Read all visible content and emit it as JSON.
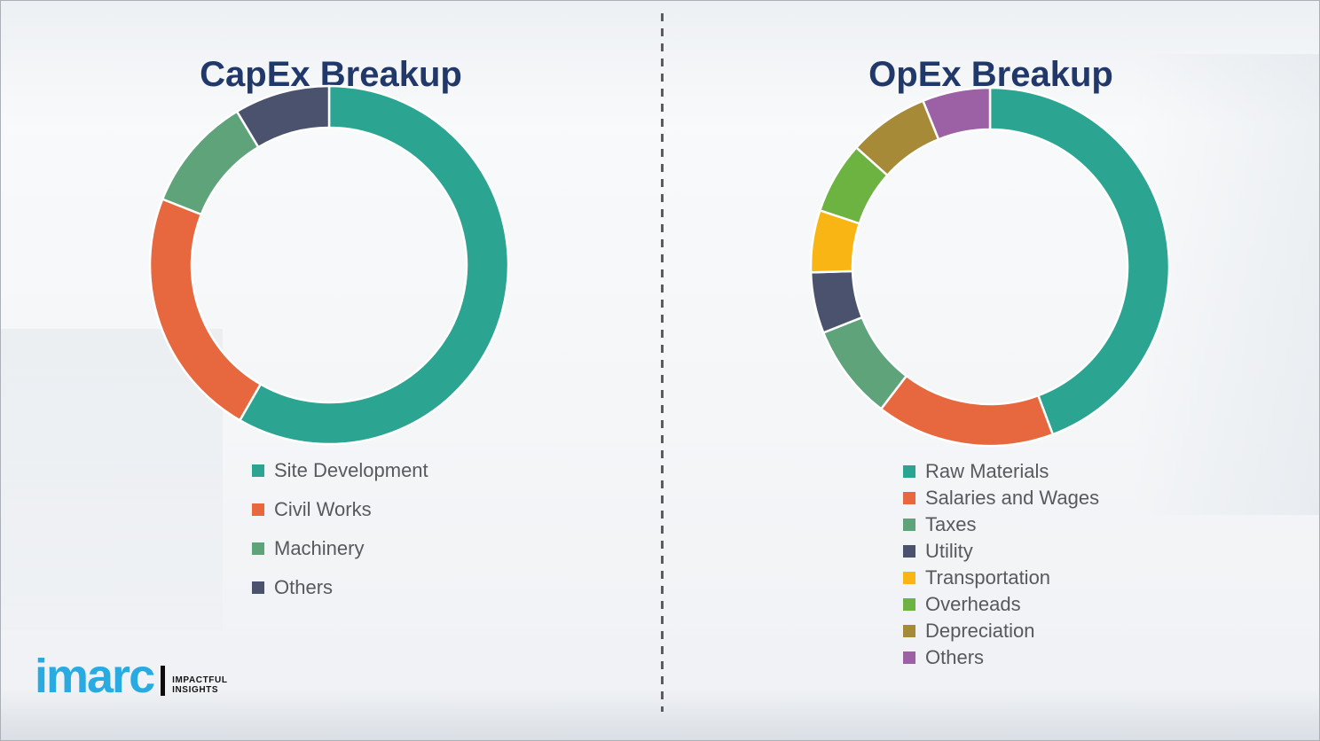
{
  "chart_data": [
    {
      "type": "pie",
      "subtype": "donut",
      "title": "CapEx Breakup",
      "categories": [
        "Site Development",
        "Civil Works",
        "Machinery",
        "Others"
      ],
      "values": [
        58.3,
        22.7,
        10.4,
        8.6
      ],
      "colors": [
        "#2BA592",
        "#E7673F",
        "#5FA37A",
        "#4A526D"
      ],
      "units": "percent_of_total",
      "start_angle_deg": 0,
      "direction": "clockwise",
      "data_labels": "none",
      "legend_position": "below-left"
    },
    {
      "type": "pie",
      "subtype": "donut",
      "title": "OpEx Breakup",
      "categories": [
        "Raw Materials",
        "Salaries and Wages",
        "Taxes",
        "Utility",
        "Transportation",
        "Overheads",
        "Depreciation",
        "Others"
      ],
      "values": [
        44.3,
        16.1,
        8.6,
        5.5,
        5.6,
        6.5,
        7.3,
        6.1
      ],
      "colors": [
        "#2BA592",
        "#E7673F",
        "#5FA37A",
        "#4A526D",
        "#F9B513",
        "#6DB342",
        "#A78A38",
        "#9B61A4"
      ],
      "units": "percent_of_total",
      "start_angle_deg": 0,
      "direction": "clockwise",
      "data_labels": "none",
      "legend_position": "below-left"
    }
  ],
  "logo": {
    "brand": "imarc",
    "tagline_line1": "IMPACTFUL",
    "tagline_line2": "INSIGHTS",
    "brand_color": "#29ABE2"
  },
  "styles": {
    "title_color": "#21386B",
    "legend_text_color": "#57595C",
    "divider_color": "#5A5C5E",
    "segment_gap_color": "#FFFFFF"
  }
}
